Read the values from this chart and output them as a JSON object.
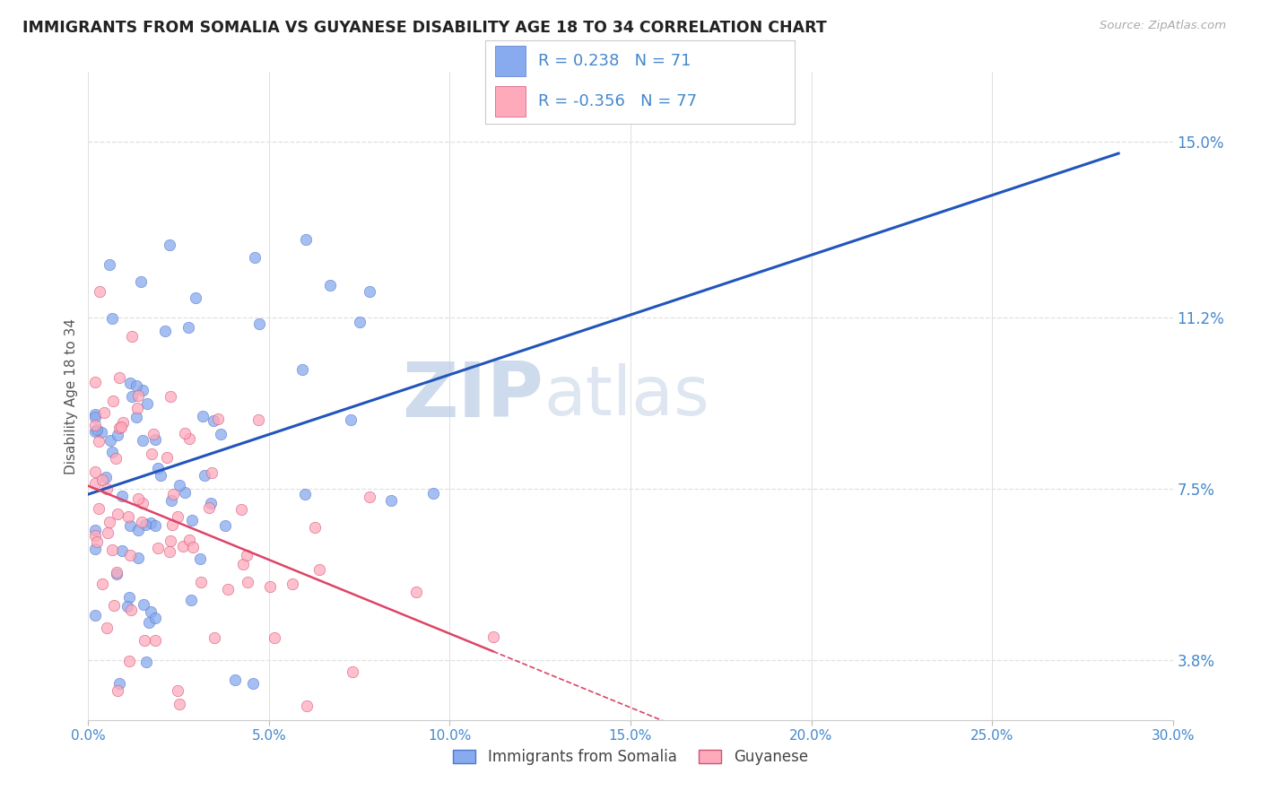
{
  "title": "IMMIGRANTS FROM SOMALIA VS GUYANESE DISABILITY AGE 18 TO 34 CORRELATION CHART",
  "source": "Source: ZipAtlas.com",
  "ylabel": "Disability Age 18 to 34",
  "xlim": [
    0.0,
    0.3
  ],
  "ylim": [
    0.025,
    0.165
  ],
  "xticks": [
    0.0,
    0.05,
    0.1,
    0.15,
    0.2,
    0.25,
    0.3
  ],
  "xtick_labels": [
    "0.0%",
    "5.0%",
    "10.0%",
    "15.0%",
    "20.0%",
    "25.0%",
    "30.0%"
  ],
  "ytick_values": [
    0.038,
    0.075,
    0.112,
    0.15
  ],
  "ytick_labels": [
    "3.8%",
    "7.5%",
    "11.2%",
    "15.0%"
  ],
  "series1_name": "Immigrants from Somalia",
  "series1_R": 0.238,
  "series1_N": 71,
  "series1_color": "#88aaee",
  "series1_edge_color": "#5577cc",
  "series1_line_color": "#2255bb",
  "series2_name": "Guyanese",
  "series2_R": -0.356,
  "series2_N": 77,
  "series2_color": "#ffaabb",
  "series2_edge_color": "#cc5577",
  "series2_line_color": "#dd4466",
  "watermark_zip": "ZIP",
  "watermark_atlas": "atlas",
  "background_color": "#ffffff",
  "grid_color": "#e0e0e0",
  "title_color": "#222222",
  "axis_label_color": "#555555",
  "tick_label_color": "#4488cc",
  "legend_text_color": "#222222",
  "legend_value_color": "#4488cc"
}
